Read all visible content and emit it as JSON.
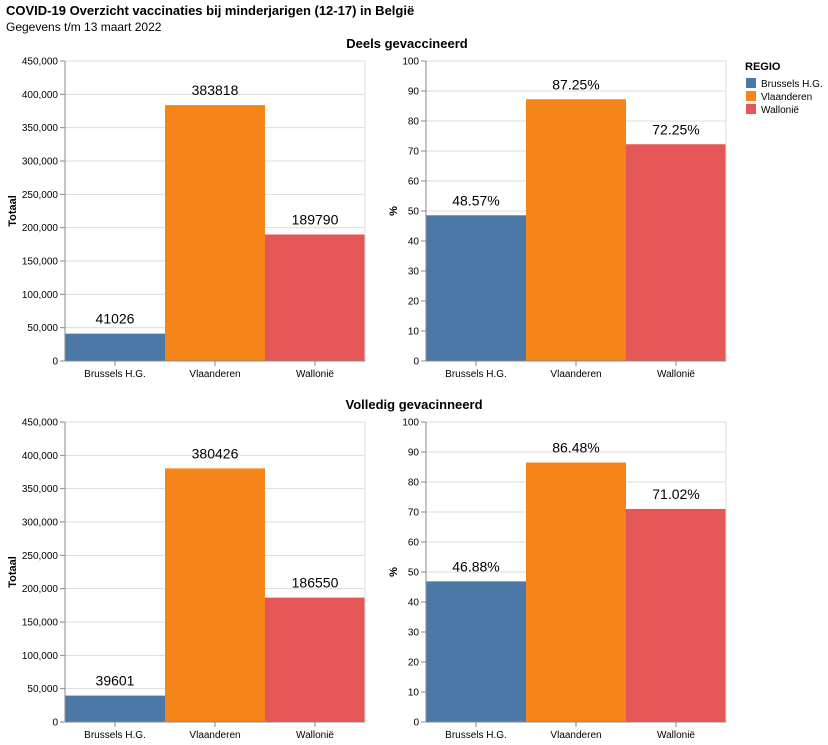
{
  "title": "COVID-19 Overzicht vaccinaties bij minderjarigen (12-17) in België",
  "subtitle": "Gegevens t/m 13 maart 2022",
  "legend": {
    "title": "REGIO",
    "entries": [
      {
        "label": "Brussels H.G.",
        "color": "#4c78a8"
      },
      {
        "label": "Vlaanderen",
        "color": "#f58518"
      },
      {
        "label": "Wallonië",
        "color": "#e45756"
      }
    ]
  },
  "chart_data": [
    {
      "type": "bar",
      "row_title": "Deels gevaccineerd",
      "panel": "count",
      "categories": [
        "Brussels H.G.",
        "Vlaanderen",
        "Wallonië"
      ],
      "values": [
        41026,
        383818,
        189790
      ],
      "value_labels": [
        "41026",
        "383818",
        "189790"
      ],
      "ylabel": "Totaal",
      "ylim": [
        0,
        450000
      ],
      "yticks": [
        0,
        50000,
        100000,
        150000,
        200000,
        250000,
        300000,
        350000,
        400000,
        450000
      ],
      "ytick_labels": [
        "0",
        "50,000",
        "100,000",
        "150,000",
        "200,000",
        "250,000",
        "300,000",
        "350,000",
        "400,000",
        "450,000"
      ]
    },
    {
      "type": "bar",
      "row_title": "Deels gevaccineerd",
      "panel": "percent",
      "categories": [
        "Brussels H.G.",
        "Vlaanderen",
        "Wallonië"
      ],
      "values": [
        48.57,
        87.25,
        72.25
      ],
      "value_labels": [
        "48.57%",
        "87.25%",
        "72.25%"
      ],
      "ylabel": "%",
      "ylim": [
        0,
        100
      ],
      "yticks": [
        0,
        10,
        20,
        30,
        40,
        50,
        60,
        70,
        80,
        90,
        100
      ],
      "ytick_labels": [
        "0",
        "10",
        "20",
        "30",
        "40",
        "50",
        "60",
        "70",
        "80",
        "90",
        "100"
      ]
    },
    {
      "type": "bar",
      "row_title": "Volledig gevacinneerd",
      "panel": "count",
      "categories": [
        "Brussels H.G.",
        "Vlaanderen",
        "Wallonië"
      ],
      "values": [
        39601,
        380426,
        186550
      ],
      "value_labels": [
        "39601",
        "380426",
        "186550"
      ],
      "ylabel": "Totaal",
      "ylim": [
        0,
        450000
      ],
      "yticks": [
        0,
        50000,
        100000,
        150000,
        200000,
        250000,
        300000,
        350000,
        400000,
        450000
      ],
      "ytick_labels": [
        "0",
        "50,000",
        "100,000",
        "150,000",
        "200,000",
        "250,000",
        "300,000",
        "350,000",
        "400,000",
        "450,000"
      ]
    },
    {
      "type": "bar",
      "row_title": "Volledig gevacinneerd",
      "panel": "percent",
      "categories": [
        "Brussels H.G.",
        "Vlaanderen",
        "Wallonië"
      ],
      "values": [
        46.88,
        86.48,
        71.02
      ],
      "value_labels": [
        "46.88%",
        "86.48%",
        "71.02%"
      ],
      "ylabel": "%",
      "ylim": [
        0,
        100
      ],
      "yticks": [
        0,
        10,
        20,
        30,
        40,
        50,
        60,
        70,
        80,
        90,
        100
      ],
      "ytick_labels": [
        "0",
        "10",
        "20",
        "30",
        "40",
        "50",
        "60",
        "70",
        "80",
        "90",
        "100"
      ]
    }
  ]
}
